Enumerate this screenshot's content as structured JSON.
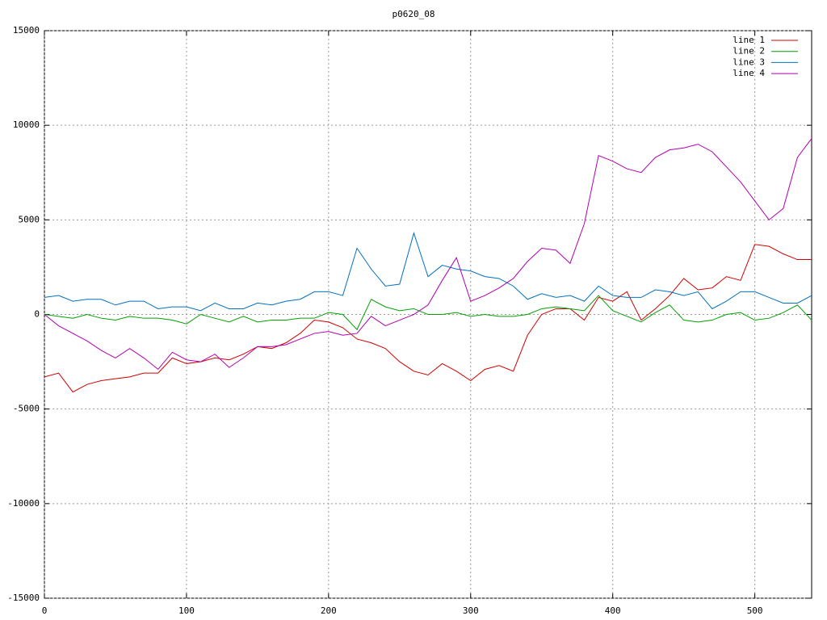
{
  "chart_data": {
    "type": "line",
    "title": "p0620_08",
    "x": [
      0,
      10,
      20,
      30,
      40,
      50,
      60,
      70,
      80,
      90,
      100,
      110,
      120,
      130,
      140,
      150,
      160,
      170,
      180,
      190,
      200,
      210,
      220,
      230,
      240,
      250,
      260,
      270,
      280,
      290,
      300,
      310,
      320,
      330,
      340,
      350,
      360,
      370,
      380,
      390,
      400,
      410,
      420,
      430,
      440,
      450,
      460,
      470,
      480,
      490,
      500,
      510,
      520,
      530,
      540
    ],
    "series": [
      {
        "name": "line 1",
        "color": "#d00000",
        "values": [
          -3300,
          -3100,
          -4100,
          -3700,
          -3500,
          -3400,
          -3300,
          -3100,
          -3100,
          -2300,
          -2600,
          -2500,
          -2300,
          -2400,
          -2100,
          -1700,
          -1800,
          -1500,
          -1000,
          -300,
          -400,
          -700,
          -1300,
          -1500,
          -1800,
          -2500,
          -3000,
          -3200,
          -2600,
          -3000,
          -3500,
          -2900,
          -2700,
          -3000,
          -1100,
          0,
          300,
          300,
          -300,
          900,
          700,
          1200,
          -300,
          300,
          1000,
          1900,
          1300,
          1400,
          2000,
          1800,
          3700,
          3600,
          3200,
          2900,
          2900
        ]
      },
      {
        "name": "line 2",
        "color": "#00a000",
        "values": [
          0,
          -100,
          -200,
          0,
          -200,
          -300,
          -100,
          -200,
          -200,
          -300,
          -500,
          0,
          -200,
          -400,
          -100,
          -400,
          -300,
          -300,
          -200,
          -200,
          100,
          0,
          -800,
          800,
          400,
          200,
          300,
          0,
          0,
          100,
          -100,
          0,
          -100,
          -100,
          0,
          300,
          400,
          300,
          200,
          1000,
          200,
          -100,
          -400,
          100,
          500,
          -300,
          -400,
          -300,
          0,
          100,
          -300,
          -200,
          100,
          500,
          -300
        ]
      },
      {
        "name": "line 3",
        "color": "#0070c0",
        "values": [
          900,
          1000,
          700,
          800,
          800,
          500,
          700,
          700,
          300,
          400,
          400,
          200,
          600,
          300,
          300,
          600,
          500,
          700,
          800,
          1200,
          1200,
          1000,
          3500,
          2400,
          1500,
          1600,
          4300,
          2000,
          2600,
          2400,
          2300,
          2000,
          1900,
          1500,
          800,
          1100,
          900,
          1000,
          700,
          1500,
          1000,
          900,
          900,
          1300,
          1200,
          1000,
          1200,
          300,
          700,
          1200,
          1200,
          900,
          600,
          600,
          1000
        ]
      },
      {
        "name": "line 4",
        "color": "#b000b0",
        "values": [
          0,
          -600,
          -1000,
          -1400,
          -1900,
          -2300,
          -1800,
          -2300,
          -2900,
          -2000,
          -2400,
          -2500,
          -2100,
          -2800,
          -2300,
          -1700,
          -1700,
          -1600,
          -1300,
          -1000,
          -900,
          -1100,
          -1000,
          -100,
          -600,
          -300,
          0,
          500,
          1800,
          3000,
          700,
          1000,
          1400,
          1900,
          2800,
          3500,
          3400,
          2700,
          4800,
          8400,
          8100,
          7700,
          7500,
          8300,
          8700,
          8800,
          9000,
          8600,
          7800,
          7000,
          6000,
          5000,
          5600,
          8300,
          9300
        ]
      }
    ],
    "xlim": [
      0,
      540
    ],
    "xticks": [
      0,
      100,
      200,
      300,
      400,
      500
    ],
    "ylim": [
      -15000,
      15000
    ],
    "yticks": [
      -15000,
      -10000,
      -5000,
      0,
      5000,
      10000,
      15000
    ],
    "grid": true,
    "legend": "upper right"
  }
}
